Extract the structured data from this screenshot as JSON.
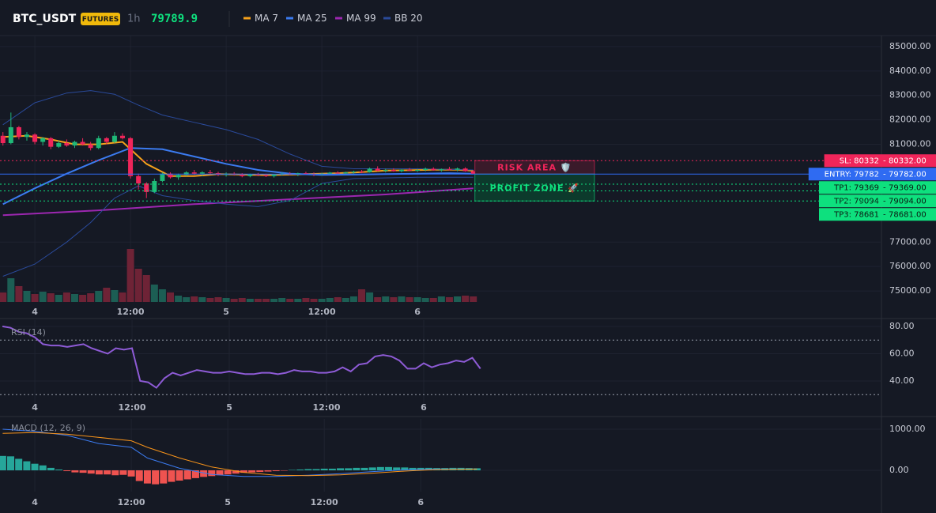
{
  "chart_data": [
    {
      "type": "candlestick",
      "title": "BTC_USDT",
      "badge": "FUTURES",
      "interval": "1h",
      "last_price": 79789.9,
      "x": [
        -4,
        -3,
        -2,
        -1,
        0,
        1,
        2,
        3,
        4,
        5,
        6,
        7,
        8,
        9,
        10,
        11,
        12,
        13,
        14,
        15,
        16,
        17,
        18,
        19,
        20,
        21,
        22,
        23,
        24,
        25,
        26,
        27,
        28,
        29,
        30,
        31,
        32,
        33,
        34,
        35,
        36,
        37,
        38,
        39,
        40,
        41,
        42,
        43,
        44,
        45,
        46,
        47,
        48,
        49,
        50,
        51,
        52,
        53,
        54,
        55
      ],
      "open": [
        81350,
        81050,
        81700,
        81300,
        81400,
        81100,
        81250,
        80900,
        81050,
        80950,
        81100,
        81000,
        80850,
        81250,
        81100,
        81350,
        81250,
        79700,
        79400,
        79050,
        79500,
        79800,
        79650,
        79750,
        79850,
        79800,
        79850,
        79820,
        79750,
        79800,
        79760,
        79700,
        79780,
        79740,
        79700,
        79760,
        79800,
        79780,
        79820,
        79790,
        79760,
        79800,
        79840,
        79810,
        79850,
        79880,
        79860,
        80000,
        79920,
        79950,
        79900,
        79960,
        79930,
        79950,
        80000,
        79940,
        79980,
        79960,
        80010,
        79900
      ],
      "high": [
        81500,
        82300,
        81750,
        81500,
        81450,
        81300,
        81300,
        81150,
        81200,
        81150,
        81250,
        81100,
        81350,
        81300,
        81500,
        81450,
        81300,
        79800,
        79450,
        79600,
        79850,
        79850,
        79800,
        79900,
        79950,
        79900,
        79950,
        79880,
        79850,
        79860,
        79820,
        79800,
        79830,
        79800,
        79780,
        79850,
        79860,
        79840,
        79880,
        79850,
        79830,
        79870,
        79900,
        79880,
        79920,
        79950,
        80050,
        80100,
        80000,
        80020,
        79980,
        80030,
        79990,
        80050,
        80060,
        80010,
        80080,
        80050,
        80060,
        79950
      ],
      "low": [
        80950,
        81000,
        81200,
        81150,
        81000,
        80950,
        80800,
        80850,
        80900,
        80850,
        80950,
        80750,
        80800,
        81000,
        81050,
        81200,
        79600,
        79150,
        78800,
        79000,
        79450,
        79600,
        79550,
        79700,
        79750,
        79700,
        79780,
        79700,
        79680,
        79720,
        79650,
        79650,
        79700,
        79660,
        79640,
        79720,
        79740,
        79700,
        79760,
        79700,
        79720,
        79760,
        79780,
        79770,
        79800,
        79820,
        79840,
        79900,
        79850,
        79880,
        79850,
        79900,
        79870,
        79900,
        79920,
        79880,
        79930,
        79900,
        79880,
        79780
      ],
      "close": [
        81050,
        81700,
        81300,
        81400,
        81100,
        81250,
        80900,
        81050,
        80950,
        81100,
        81000,
        80850,
        81250,
        81100,
        81350,
        81250,
        79700,
        79400,
        79050,
        79500,
        79800,
        79650,
        79750,
        79850,
        79800,
        79850,
        79820,
        79750,
        79800,
        79760,
        79700,
        79780,
        79740,
        79700,
        79760,
        79800,
        79780,
        79820,
        79790,
        79760,
        79800,
        79840,
        79810,
        79850,
        79880,
        79860,
        80000,
        79920,
        79950,
        79900,
        79960,
        79930,
        79950,
        80000,
        79940,
        79980,
        79960,
        80010,
        79900,
        79790
      ],
      "volume": [
        12,
        30,
        20,
        14,
        10,
        13,
        11,
        9,
        12,
        10,
        9,
        11,
        14,
        18,
        15,
        12,
        67,
        42,
        34,
        22,
        16,
        12,
        8,
        6,
        7,
        6,
        5,
        6,
        5,
        4,
        5,
        4,
        4,
        4,
        4,
        5,
        4,
        4,
        5,
        4,
        4,
        5,
        6,
        5,
        7,
        16,
        12,
        6,
        7,
        6,
        7,
        6,
        6,
        5,
        5,
        7,
        6,
        7,
        8,
        7
      ],
      "up_color": "#1fb978",
      "down_color": "#f0255a",
      "volume_up_color": "#1c5e54",
      "volume_down_color": "#6e2336",
      "overlays": [
        {
          "name": "MA 7",
          "color": "#f7a21b",
          "x": [
            -4,
            -1,
            2,
            5,
            8,
            11,
            14,
            17,
            20,
            23,
            26,
            29,
            32,
            35,
            38,
            41,
            44,
            47,
            50,
            53,
            55
          ],
          "values": [
            81300,
            81350,
            81200,
            81000,
            81000,
            81100,
            80200,
            79700,
            79700,
            79780,
            79760,
            79740,
            79760,
            79790,
            79820,
            79860,
            79930,
            79940,
            79960,
            79960,
            79920
          ]
        },
        {
          "name": "MA 25",
          "color": "#3b7bf0",
          "x": [
            -4,
            0,
            4,
            8,
            12,
            16,
            20,
            24,
            28,
            32,
            36,
            40,
            44,
            48,
            52,
            55
          ],
          "values": [
            78550,
            79200,
            79800,
            80350,
            80850,
            80800,
            80500,
            80200,
            79950,
            79800,
            79750,
            79760,
            79780,
            79800,
            79820,
            79800
          ]
        },
        {
          "name": "MA 99",
          "color": "#9c27b0",
          "x": [
            -4,
            8,
            20,
            32,
            44,
            55
          ],
          "values": [
            78100,
            78300,
            78550,
            78750,
            78950,
            79200
          ]
        },
        {
          "name": "BB 20",
          "color": "#2a4a9a",
          "x": [
            -4,
            0,
            4,
            7,
            10,
            13,
            16,
            20,
            24,
            28,
            32,
            36,
            40,
            48,
            55
          ],
          "upper": [
            81800,
            82700,
            83100,
            83200,
            83050,
            82600,
            82200,
            81900,
            81600,
            81200,
            80600,
            80100,
            80000,
            80000,
            79950
          ],
          "lower": [
            75600,
            76100,
            77000,
            77800,
            78800,
            79300,
            78900,
            78700,
            78550,
            78450,
            78700,
            79400,
            79600,
            79650,
            79650
          ]
        }
      ],
      "levels": [
        {
          "label": "SL: 80332",
          "value": 80332,
          "value_label": "80332.00",
          "color": "#f0255a",
          "dashed": true
        },
        {
          "label": "ENTRY: 79782",
          "value": 79782,
          "value_label": "79782.00",
          "color": "#2f6bf2",
          "dashed": false
        },
        {
          "label": "TP1: 79369",
          "value": 79369,
          "value_label": "79369.00",
          "color": "#0ee07e",
          "dashed": true
        },
        {
          "label": "TP2: 79094",
          "value": 79094,
          "value_label": "79094.00",
          "color": "#0ee07e",
          "dashed": true
        },
        {
          "label": "TP3: 78681",
          "value": 78681,
          "value_label": "78681.00",
          "color": "#0ee07e",
          "dashed": true
        }
      ],
      "level_separator": "-",
      "annotations": [
        {
          "text": "RISK AREA 🛡️",
          "x": [
            55.2,
            70.2
          ],
          "y": [
            79782,
            80332
          ],
          "color": "#f0255a",
          "fill": "#3a1a2a"
        },
        {
          "text": "PROFIT ZONE 🚀",
          "x": [
            55.2,
            70.2
          ],
          "y": [
            78681,
            79782
          ],
          "color": "#0ee07e",
          "fill": "#0c3a2c"
        }
      ],
      "xlim": [
        -4.37,
        106.2
      ],
      "ylim": [
        74550,
        85450
      ],
      "xticks": [
        {
          "value": 0,
          "label": "4"
        },
        {
          "value": 12,
          "label": "12:00"
        },
        {
          "value": 24,
          "label": "5"
        },
        {
          "value": 36,
          "label": "12:00"
        },
        {
          "value": 48,
          "label": "6"
        }
      ],
      "yticks": [
        {
          "value": 85000,
          "label": "85000.00"
        },
        {
          "value": 84000,
          "label": "84000.00"
        },
        {
          "value": 83000,
          "label": "83000.00"
        },
        {
          "value": 82000,
          "label": "82000.00"
        },
        {
          "value": 81000,
          "label": "81000.00"
        },
        {
          "value": 77000,
          "label": "77000.00"
        },
        {
          "value": 76000,
          "label": "76000.00"
        },
        {
          "value": 75000,
          "label": "75000.00"
        }
      ],
      "grid": true
    },
    {
      "type": "line",
      "title": "RSI (14)",
      "color": "#8e5bd6",
      "x": [
        -4,
        -3,
        -2,
        -1,
        0,
        1,
        2,
        3,
        4,
        5,
        6,
        7,
        8,
        9,
        10,
        11,
        12,
        13,
        14,
        15,
        16,
        17,
        18,
        19,
        20,
        21,
        22,
        23,
        24,
        25,
        26,
        27,
        28,
        29,
        30,
        31,
        32,
        33,
        34,
        35,
        36,
        37,
        38,
        39,
        40,
        41,
        42,
        43,
        44,
        45,
        46,
        47,
        48,
        49,
        50,
        51,
        52,
        53,
        54,
        55
      ],
      "values": [
        80,
        79,
        76,
        75,
        72,
        67,
        66,
        66,
        65,
        66,
        67,
        64,
        62,
        60,
        64,
        63,
        64,
        40,
        39,
        35,
        42,
        46,
        44,
        46,
        48,
        47,
        46,
        46,
        47,
        46,
        45,
        45,
        46,
        46,
        45,
        46,
        48,
        47,
        47,
        46,
        46,
        47,
        50,
        47,
        52,
        53,
        58,
        59,
        58,
        55,
        49,
        49,
        53,
        50,
        52,
        53,
        55,
        54,
        57,
        49
      ],
      "bands": [
        70,
        30
      ],
      "xlim": [
        -4.3,
        104.5
      ],
      "ylim": [
        19.1,
        84.6
      ],
      "xticks": [
        {
          "value": 0,
          "label": "4"
        },
        {
          "value": 12,
          "label": "12:00"
        },
        {
          "value": 24,
          "label": "5"
        },
        {
          "value": 36,
          "label": "12:00"
        },
        {
          "value": 48,
          "label": "6"
        }
      ],
      "yticks": [
        {
          "value": 80,
          "label": "80.00"
        },
        {
          "value": 60,
          "label": "60.00"
        },
        {
          "value": 40,
          "label": "40.00"
        }
      ],
      "grid": true
    },
    {
      "type": "macd",
      "title": "MACD (12, 26, 9)",
      "x": [
        -4,
        -3,
        -2,
        -1,
        0,
        1,
        2,
        3,
        4,
        5,
        6,
        7,
        8,
        9,
        10,
        11,
        12,
        13,
        14,
        15,
        16,
        17,
        18,
        19,
        20,
        21,
        22,
        23,
        24,
        25,
        26,
        27,
        28,
        29,
        30,
        31,
        32,
        33,
        34,
        35,
        36,
        37,
        38,
        39,
        40,
        41,
        42,
        43,
        44,
        45,
        46,
        47,
        48,
        49,
        50,
        51,
        52,
        53,
        54,
        55
      ],
      "histogram": [
        350,
        340,
        280,
        220,
        160,
        120,
        60,
        20,
        -20,
        -50,
        -60,
        -80,
        -100,
        -100,
        -120,
        -110,
        -150,
        -260,
        -320,
        -340,
        -320,
        -280,
        -250,
        -220,
        -190,
        -160,
        -140,
        -120,
        -100,
        -80,
        -60,
        -50,
        -40,
        -30,
        -20,
        -10,
        10,
        20,
        30,
        30,
        40,
        40,
        50,
        50,
        60,
        60,
        70,
        80,
        80,
        70,
        70,
        60,
        60,
        60,
        55,
        55,
        60,
        60,
        55,
        50
      ],
      "up_color": "#26a69a",
      "down_color": "#ef5350",
      "series": [
        {
          "color": "#3b7bf0",
          "x": [
            -4,
            0,
            4,
            8,
            12,
            14,
            18,
            22,
            26,
            30,
            34,
            38,
            42,
            46,
            50,
            55
          ],
          "values": [
            1000,
            950,
            850,
            650,
            560,
            300,
            50,
            -100,
            -150,
            -150,
            -120,
            -80,
            -30,
            10,
            30,
            30
          ]
        },
        {
          "color": "#f7931a",
          "x": [
            -4,
            0,
            4,
            8,
            12,
            14,
            18,
            22,
            26,
            30,
            34,
            38,
            42,
            46,
            50,
            55
          ],
          "values": [
            900,
            920,
            880,
            800,
            720,
            560,
            300,
            80,
            -50,
            -120,
            -130,
            -110,
            -70,
            -20,
            20,
            30
          ]
        }
      ],
      "xlim": [
        -4.33,
        105.3
      ],
      "ylim": [
        -519,
        1250
      ],
      "xticks": [
        {
          "value": 0,
          "label": "4"
        },
        {
          "value": 12,
          "label": "12:00"
        },
        {
          "value": 24,
          "label": "5"
        },
        {
          "value": 36,
          "label": "12:00"
        },
        {
          "value": 48,
          "label": "6"
        }
      ],
      "yticks": [
        {
          "value": 1000,
          "label": "1000.00"
        },
        {
          "value": 0,
          "label": "0.00"
        }
      ],
      "grid": true
    }
  ]
}
